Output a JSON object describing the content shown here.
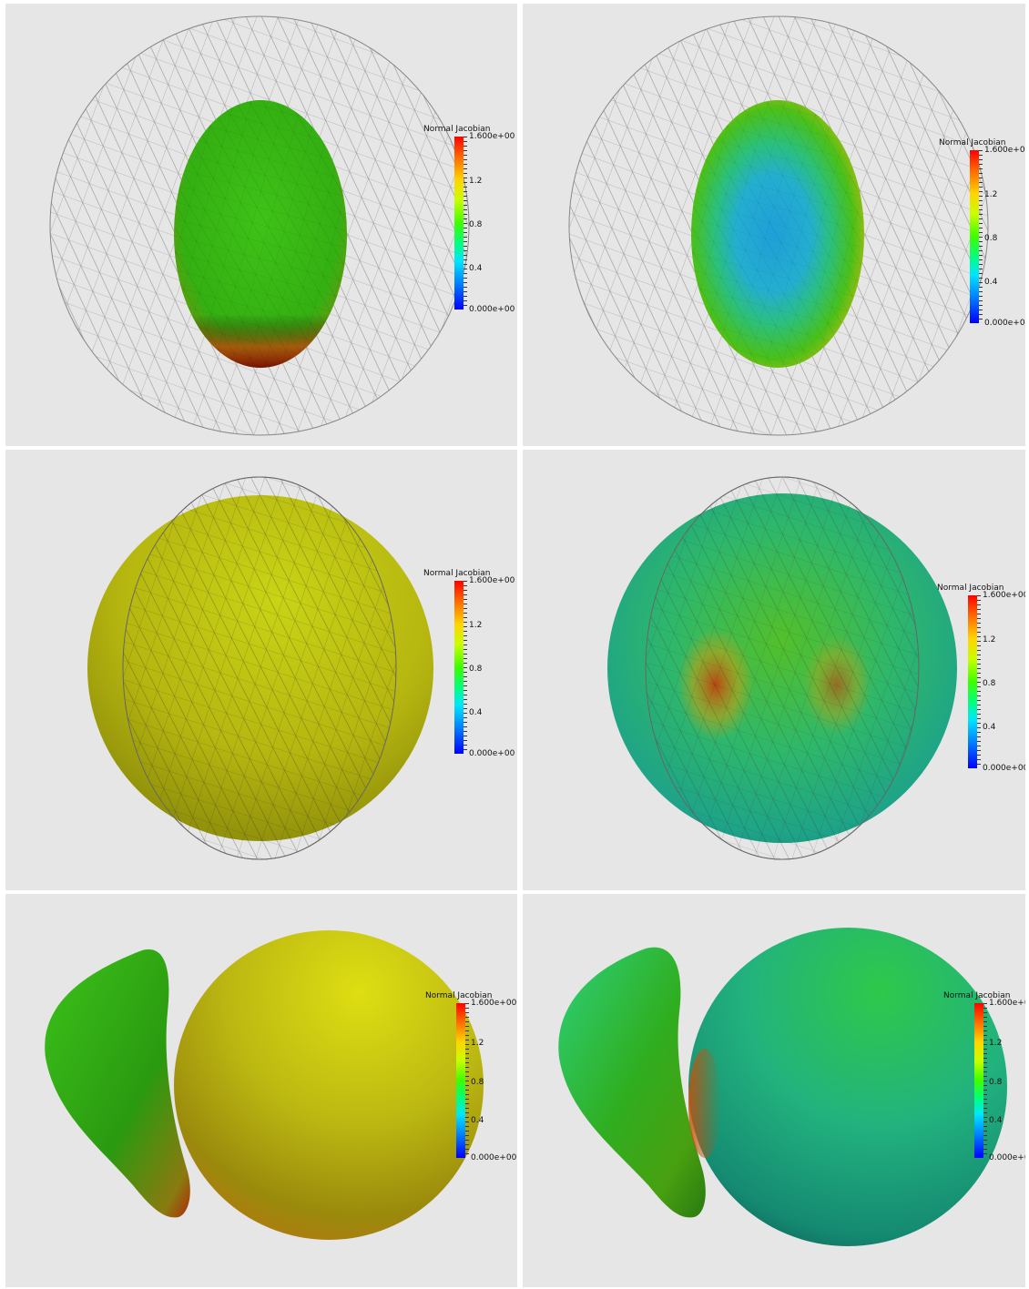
{
  "legend": {
    "title": "Normal Jacobian",
    "max_label": "1.600e+00",
    "tick_1_2": "1.2",
    "tick_0_8": "0.8",
    "tick_0_4": "0.4",
    "min_label": "0.000e+00",
    "range": [
      0,
      1.6
    ]
  },
  "colors": {
    "background": "#e6e6e6",
    "wireframe": "#9a9a9a",
    "green": "#3fbf10",
    "blue": "#23a6d9",
    "yellow_olive": "#c7c414",
    "teal": "#1db08a",
    "red": "#c62a0a"
  },
  "panels": [
    {
      "id": "top-left"
    },
    {
      "id": "top-right"
    },
    {
      "id": "middle-left"
    },
    {
      "id": "middle-right"
    },
    {
      "id": "bottom-left"
    },
    {
      "id": "bottom-right"
    }
  ]
}
